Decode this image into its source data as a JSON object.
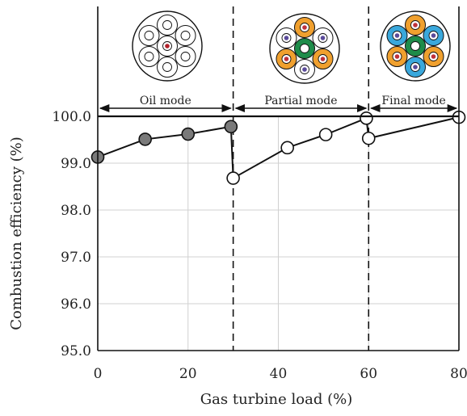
{
  "chart_data": {
    "type": "line",
    "xlabel": "Gas turbine load (%)",
    "ylabel": "Combustion efficiency (%)",
    "xlim": [
      0,
      80
    ],
    "ylim": [
      95.0,
      100.0
    ],
    "x_ticks": [
      "0",
      "20",
      "40",
      "60",
      "80"
    ],
    "y_ticks": [
      "95.0",
      "96.0",
      "97.0",
      "98.0",
      "99.0",
      "100.0"
    ],
    "grid": true,
    "series": [
      {
        "marker_fill": "#7a7a7a",
        "points": [
          {
            "x": 0,
            "y": 99.13
          },
          {
            "x": 10.5,
            "y": 99.51
          },
          {
            "x": 20,
            "y": 99.62
          },
          {
            "x": 29.5,
            "y": 99.78
          }
        ]
      },
      {
        "marker_fill": "#ffffff",
        "points": [
          {
            "x": 30,
            "y": 98.68
          },
          {
            "x": 42,
            "y": 99.33
          },
          {
            "x": 50.5,
            "y": 99.61
          },
          {
            "x": 59.5,
            "y": 99.96
          }
        ]
      },
      {
        "marker_fill": "#ffffff",
        "points": [
          {
            "x": 60,
            "y": 99.53
          },
          {
            "x": 80,
            "y": 99.98
          }
        ]
      }
    ],
    "mode_boundaries_x": [
      30,
      60
    ],
    "modes": [
      {
        "label": "Oil mode",
        "x_start": 0,
        "x_end": 30
      },
      {
        "label": "Partial mode",
        "x_start": 30,
        "x_end": 60
      },
      {
        "label": "Final mode",
        "x_start": 60,
        "x_end": 80
      }
    ],
    "burner_colors": {
      "unfueled": "#ffffff",
      "oil_center": "#b0202a",
      "orange": "#f0a02e",
      "green": "#1e8c4a",
      "blue": "#3aa8dc",
      "inner_red": "#c0303a",
      "inner_purple": "#5a4a9a"
    }
  }
}
